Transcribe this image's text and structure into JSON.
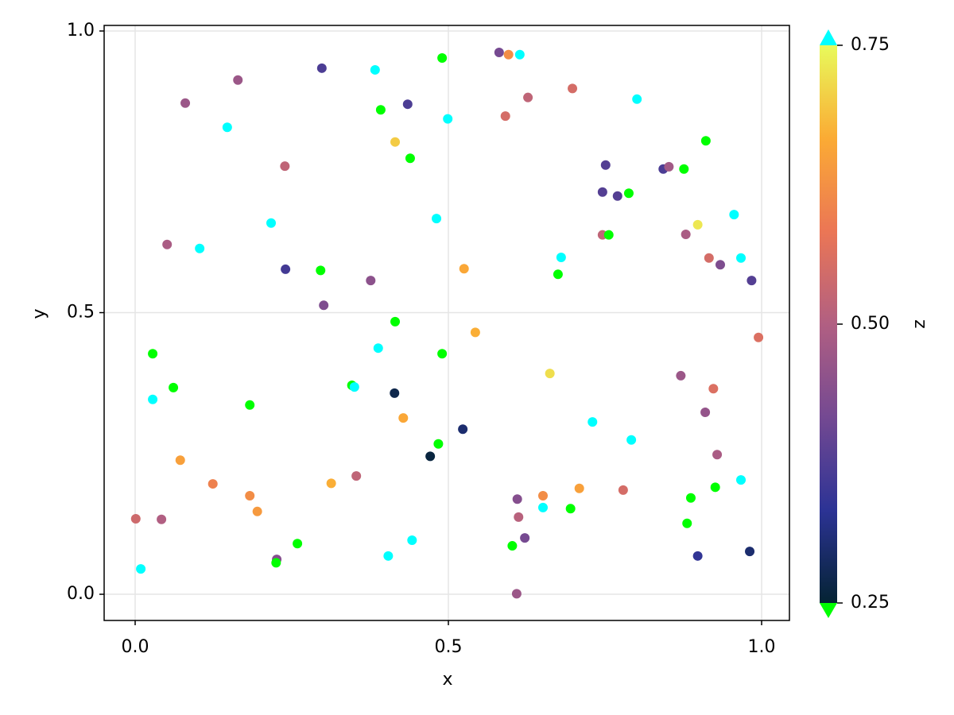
{
  "chart_data": {
    "type": "scatter",
    "x_label": "x",
    "y_label": "y",
    "colorbar_label": "z",
    "xlim": [
      -0.0495,
      1.0444
    ],
    "ylim": [
      -0.0465,
      1.0099
    ],
    "xticks": [
      {
        "value": 0,
        "label": "0.0"
      },
      0.5,
      {
        "value": 1,
        "label": "1.0"
      }
    ],
    "yticks": [
      {
        "value": 0,
        "label": "0.0"
      },
      0.5,
      {
        "value": 1,
        "label": "1.0"
      }
    ],
    "zlim": [
      0.25,
      0.75
    ],
    "zticks": [
      0.25,
      {
        "value": 0.5,
        "label": "0.50"
      },
      0.75
    ],
    "colormap": [
      "#042333",
      "#2c3395",
      "#744992",
      "#b15f82",
      "#eb7655",
      "#fbab34",
      "#e8fa5b"
    ],
    "lowclip": "#00ff00",
    "highclip": "#00ffff",
    "grid": true,
    "x": [
      0.001,
      0.009,
      0.028,
      0.028,
      0.042,
      0.051,
      0.061,
      0.072,
      0.08,
      0.103,
      0.124,
      0.147,
      0.164,
      0.183,
      0.183,
      0.195,
      0.217,
      0.226,
      0.225,
      0.239,
      0.24,
      0.259,
      0.296,
      0.298,
      0.301,
      0.313,
      0.346,
      0.35,
      0.353,
      0.376,
      0.383,
      0.388,
      0.392,
      0.404,
      0.414,
      0.415,
      0.415,
      0.428,
      0.435,
      0.439,
      0.442,
      0.471,
      0.481,
      0.484,
      0.49,
      0.49,
      0.499,
      0.523,
      0.525,
      0.543,
      0.581,
      0.591,
      0.596,
      0.602,
      0.609,
      0.61,
      0.612,
      0.614,
      0.622,
      0.627,
      0.651,
      0.651,
      0.662,
      0.675,
      0.68,
      0.695,
      0.698,
      0.709,
      0.73,
      0.746,
      0.746,
      0.751,
      0.756,
      0.77,
      0.779,
      0.788,
      0.792,
      0.801,
      0.843,
      0.852,
      0.871,
      0.876,
      0.879,
      0.881,
      0.887,
      0.898,
      0.898,
      0.91,
      0.911,
      0.916,
      0.923,
      0.926,
      0.929,
      0.934,
      0.956,
      0.967,
      0.967,
      0.981,
      0.984,
      0.995
    ],
    "y": [
      0.134,
      0.045,
      0.427,
      0.346,
      0.133,
      0.621,
      0.367,
      0.238,
      0.872,
      0.614,
      0.196,
      0.829,
      0.913,
      0.336,
      0.175,
      0.147,
      0.659,
      0.062,
      0.056,
      0.76,
      0.577,
      0.09,
      0.575,
      0.934,
      0.513,
      0.197,
      0.371,
      0.368,
      0.21,
      0.557,
      0.931,
      0.437,
      0.86,
      0.068,
      0.357,
      0.484,
      0.803,
      0.313,
      0.87,
      0.774,
      0.096,
      0.245,
      0.667,
      0.267,
      0.427,
      0.952,
      0.844,
      0.293,
      0.578,
      0.465,
      0.962,
      0.849,
      0.958,
      0.086,
      0.001,
      0.169,
      0.137,
      0.958,
      0.1,
      0.882,
      0.175,
      0.154,
      0.392,
      0.568,
      0.598,
      0.152,
      0.898,
      0.188,
      0.306,
      0.638,
      0.714,
      0.762,
      0.638,
      0.707,
      0.185,
      0.712,
      0.274,
      0.879,
      0.755,
      0.759,
      0.388,
      0.755,
      0.639,
      0.126,
      0.171,
      0.656,
      0.068,
      0.323,
      0.805,
      0.597,
      0.365,
      0.19,
      0.248,
      0.585,
      0.674,
      0.203,
      0.597,
      0.076,
      0.557,
      0.456
    ],
    "z": [
      0.54,
      0.8,
      0.2,
      0.8,
      0.5,
      0.49,
      0.2,
      0.65,
      0.47,
      0.8,
      0.6,
      0.8,
      0.47,
      0.2,
      0.62,
      0.64,
      0.8,
      0.44,
      0.2,
      0.52,
      0.36,
      0.2,
      0.2,
      0.37,
      0.43,
      0.67,
      0.2,
      0.8,
      0.52,
      0.45,
      0.8,
      0.8,
      0.2,
      0.8,
      0.27,
      0.2,
      0.7,
      0.66,
      0.37,
      0.2,
      0.8,
      0.26,
      0.8,
      0.2,
      0.2,
      0.2,
      0.8,
      0.3,
      0.66,
      0.67,
      0.42,
      0.55,
      0.62,
      0.2,
      0.47,
      0.44,
      0.51,
      0.8,
      0.42,
      0.52,
      0.62,
      0.8,
      0.72,
      0.2,
      0.8,
      0.2,
      0.55,
      0.65,
      0.8,
      0.52,
      0.38,
      0.38,
      0.2,
      0.38,
      0.55,
      0.2,
      0.8,
      0.8,
      0.37,
      0.48,
      0.47,
      0.2,
      0.49,
      0.2,
      0.2,
      0.73,
      0.34,
      0.46,
      0.2,
      0.55,
      0.56,
      0.2,
      0.49,
      0.43,
      0.8,
      0.8,
      0.8,
      0.3,
      0.38,
      0.56
    ]
  }
}
